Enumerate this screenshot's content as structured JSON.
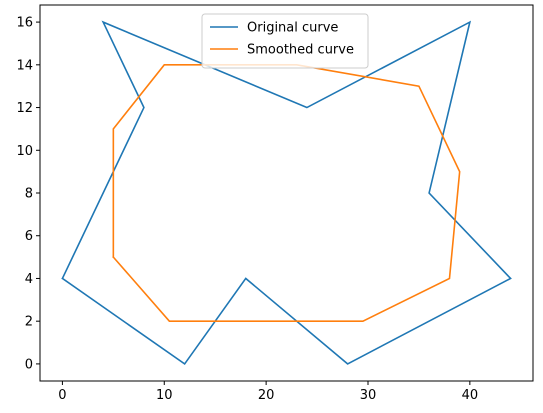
{
  "chart_data": {
    "type": "line",
    "xlim": [
      -2.2,
      46.2
    ],
    "ylim": [
      -0.8,
      16.8
    ],
    "xticks": [
      0,
      10,
      20,
      30,
      40
    ],
    "yticks": [
      0,
      2,
      4,
      6,
      8,
      10,
      12,
      14,
      16
    ],
    "grid": false,
    "legend_position": "top-center",
    "series": [
      {
        "name": "Original curve",
        "color": "#1f77b4",
        "x": [
          0,
          12,
          18,
          28,
          44,
          36,
          40,
          24,
          4,
          8,
          0
        ],
        "y": [
          4,
          0,
          4,
          0,
          4,
          8,
          16,
          12,
          16,
          12,
          4
        ]
      },
      {
        "name": "Smoothed curve",
        "color": "#ff7f0e",
        "x": [
          5,
          10.5,
          29.5,
          38,
          39,
          35,
          23,
          10,
          5,
          5
        ],
        "y": [
          5,
          2,
          2,
          4,
          9,
          13,
          14,
          14,
          11,
          5
        ]
      }
    ]
  }
}
